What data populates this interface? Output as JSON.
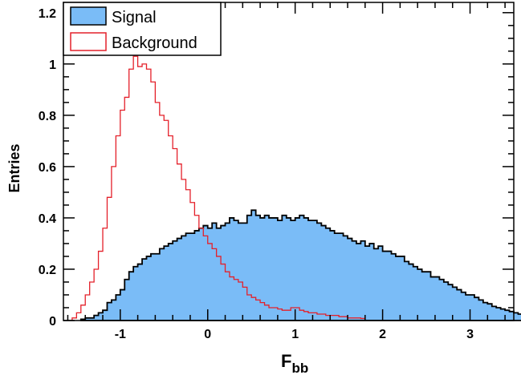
{
  "chart_data": {
    "type": "histogram",
    "xlabel": "F",
    "xlabel_sub": "bb",
    "ylabel": "Entries",
    "xlim": [
      -1.65,
      3.5
    ],
    "ylim": [
      0,
      1.24
    ],
    "x_ticks": [
      "-1",
      "0",
      "1",
      "2",
      "3"
    ],
    "y_ticks": [
      "0",
      "0.2",
      "0.4",
      "0.6",
      "0.8",
      "1",
      "1.2"
    ],
    "grid": false,
    "legend_position": "top-left",
    "bin_width": 0.05,
    "series": [
      {
        "name": "Signal",
        "style": "filled",
        "fill_color": "#7abcf7",
        "line_color": "#000000",
        "x_start": -1.45,
        "values": [
          0.005,
          0.01,
          0.01,
          0.02,
          0.03,
          0.04,
          0.07,
          0.08,
          0.1,
          0.12,
          0.16,
          0.19,
          0.21,
          0.22,
          0.24,
          0.25,
          0.26,
          0.26,
          0.28,
          0.29,
          0.3,
          0.31,
          0.32,
          0.33,
          0.34,
          0.34,
          0.35,
          0.36,
          0.37,
          0.36,
          0.38,
          0.36,
          0.37,
          0.38,
          0.4,
          0.39,
          0.38,
          0.38,
          0.41,
          0.43,
          0.41,
          0.4,
          0.41,
          0.4,
          0.4,
          0.39,
          0.41,
          0.4,
          0.39,
          0.4,
          0.41,
          0.4,
          0.39,
          0.39,
          0.38,
          0.37,
          0.36,
          0.35,
          0.34,
          0.34,
          0.33,
          0.32,
          0.31,
          0.3,
          0.31,
          0.29,
          0.3,
          0.28,
          0.29,
          0.27,
          0.27,
          0.26,
          0.25,
          0.25,
          0.23,
          0.22,
          0.21,
          0.2,
          0.19,
          0.19,
          0.17,
          0.17,
          0.16,
          0.15,
          0.14,
          0.13,
          0.12,
          0.11,
          0.1,
          0.1,
          0.09,
          0.08,
          0.07,
          0.065,
          0.055,
          0.05,
          0.045,
          0.04,
          0.035,
          0.03,
          0.025,
          0.02,
          0.017,
          0.014,
          0.012,
          0.01,
          0.008,
          0.006,
          0.005,
          0.004
        ]
      },
      {
        "name": "Background",
        "style": "outline",
        "line_color": "#e4202a",
        "x_start": -1.55,
        "values": [
          0.01,
          0.03,
          0.06,
          0.1,
          0.15,
          0.2,
          0.27,
          0.36,
          0.48,
          0.6,
          0.72,
          0.82,
          0.87,
          0.98,
          1.03,
          0.99,
          1.0,
          0.98,
          0.93,
          0.85,
          0.8,
          0.78,
          0.72,
          0.67,
          0.61,
          0.55,
          0.51,
          0.46,
          0.41,
          0.36,
          0.33,
          0.3,
          0.28,
          0.25,
          0.22,
          0.19,
          0.17,
          0.16,
          0.15,
          0.13,
          0.1,
          0.09,
          0.08,
          0.07,
          0.06,
          0.05,
          0.05,
          0.045,
          0.04,
          0.04,
          0.05,
          0.05,
          0.04,
          0.035,
          0.03,
          0.03,
          0.025,
          0.025,
          0.02,
          0.02,
          0.02,
          0.015,
          0.015,
          0.01,
          0.01,
          0.01,
          0.008
        ]
      }
    ]
  }
}
